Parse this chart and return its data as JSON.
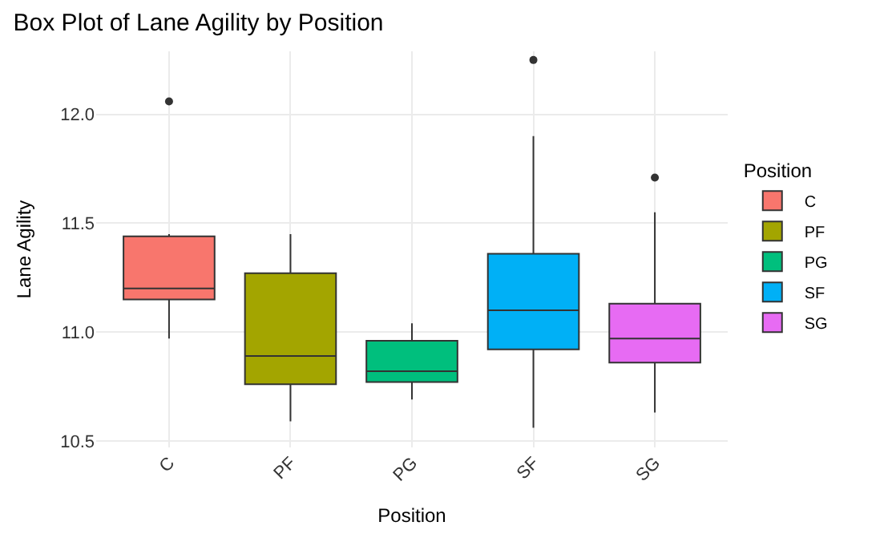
{
  "chart_data": {
    "type": "box",
    "title": "Box Plot of Lane Agility by Position",
    "xlabel": "Position",
    "ylabel": "Lane Agility",
    "legend_title": "Position",
    "categories": [
      "C",
      "PF",
      "PG",
      "SF",
      "SG"
    ],
    "series": [
      {
        "name": "C",
        "color": "#f8766d",
        "boxes": [
          {
            "low": 10.97,
            "q1": 11.15,
            "median": 11.2,
            "q3": 11.44,
            "high": 11.45,
            "outliers": [
              12.06
            ]
          },
          null,
          null,
          null,
          null
        ]
      },
      {
        "name": "PF",
        "color": "#a3a500",
        "boxes": [
          null,
          {
            "low": 10.59,
            "q1": 10.76,
            "median": 10.89,
            "q3": 11.27,
            "high": 11.45
          },
          null,
          null,
          null
        ]
      },
      {
        "name": "PG",
        "color": "#00bf7d",
        "boxes": [
          null,
          null,
          {
            "low": 10.69,
            "q1": 10.77,
            "median": 10.82,
            "q3": 10.96,
            "high": 11.04
          },
          null,
          null
        ]
      },
      {
        "name": "SF",
        "color": "#00b0f6",
        "boxes": [
          null,
          null,
          null,
          {
            "low": 10.56,
            "q1": 10.92,
            "median": 11.1,
            "q3": 11.36,
            "high": 11.9,
            "outliers": [
              12.25
            ]
          },
          null
        ]
      },
      {
        "name": "SG",
        "color": "#e76bf3",
        "boxes": [
          null,
          null,
          null,
          null,
          {
            "low": 10.63,
            "q1": 10.86,
            "median": 10.97,
            "q3": 11.13,
            "high": 11.55,
            "outliers": [
              11.71
            ]
          }
        ]
      }
    ],
    "ylim": [
      10.47,
      12.29
    ],
    "yticks": [
      {
        "value": 10.5,
        "label": "10.5"
      },
      {
        "value": 11,
        "label": "11.0"
      },
      {
        "value": 11.5,
        "label": "11.5"
      },
      {
        "value": 12,
        "label": "12.0"
      }
    ],
    "grid": true,
    "legend": "right"
  }
}
